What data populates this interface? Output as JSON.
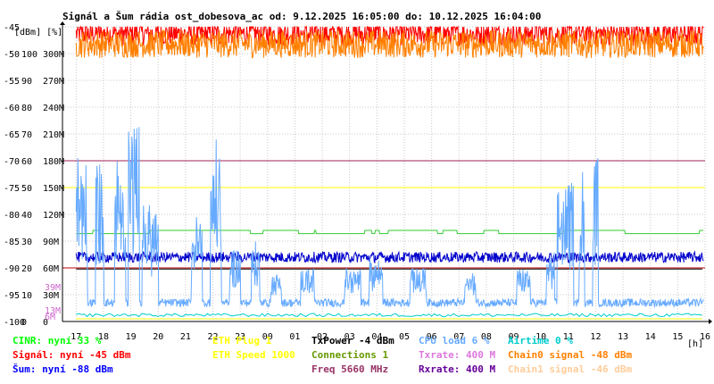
{
  "chart_data": {
    "type": "line",
    "title": "Signál a Šum rádia ost_dobesova_ac od: 9.12.2025 16:05:00 do: 10.12.2025 16:04:00",
    "y_units_label": "[dBm] [%]",
    "x_unit": "[h]",
    "x_tick_labels": [
      "17",
      "18",
      "19",
      "20",
      "21",
      "22",
      "23",
      "00",
      "01",
      "02",
      "03",
      "04",
      "05",
      "06",
      "07",
      "08",
      "09",
      "10",
      "11",
      "12",
      "13",
      "14",
      "15",
      "16"
    ],
    "x_range": [
      16.5,
      40.0
    ],
    "y_range_dbm": [
      -100,
      -45
    ],
    "y_tick_labels": [
      {
        "dbm": "-45",
        "pct": "",
        "rate": ""
      },
      {
        "dbm": "-50",
        "pct": "100",
        "rate": "300M"
      },
      {
        "dbm": "-55",
        "pct": "90",
        "rate": "270M"
      },
      {
        "dbm": "-60",
        "pct": "80",
        "rate": "240M"
      },
      {
        "dbm": "-65",
        "pct": "70",
        "rate": "210M"
      },
      {
        "dbm": "-70",
        "pct": "60",
        "rate": "180M"
      },
      {
        "dbm": "-75",
        "pct": "50",
        "rate": "150M"
      },
      {
        "dbm": "-80",
        "pct": "40",
        "rate": "120M"
      },
      {
        "dbm": "-85",
        "pct": "30",
        "rate": "90M"
      },
      {
        "dbm": "-90",
        "pct": "20",
        "rate": "60M"
      },
      {
        "dbm": "-95",
        "pct": "10",
        "rate": "30M"
      },
      {
        "dbm": "-100",
        "pct": "0",
        "rate": "0"
      }
    ],
    "side_labels": [
      {
        "text": "39M",
        "dbm": -93.5,
        "color": "#cc66cc"
      },
      {
        "text": "13M",
        "dbm": -97.8,
        "color": "#cc66cc"
      },
      {
        "text": "6M",
        "dbm": -99.0,
        "color": "#cc66cc"
      }
    ],
    "reference_lines": [
      {
        "dbm": -70,
        "color": "#a0205a"
      },
      {
        "dbm": -75,
        "color": "#ffff00"
      },
      {
        "dbm": -90,
        "color": "#c00000"
      }
    ],
    "series": [
      {
        "name": "Signál",
        "color": "#ff0000",
        "kind": "noisy",
        "base": -46.3,
        "spread": 2.2
      },
      {
        "name": "Chain0 signal",
        "color": "#ff8000",
        "kind": "noisy",
        "base": -48.2,
        "spread": 2.6
      },
      {
        "name": "Connections",
        "color": "#33cc33",
        "kind": "step",
        "base": -83.6,
        "alt": -83.0
      },
      {
        "name": "Šum",
        "color": "#0000cc",
        "kind": "noisy",
        "base": -88.0,
        "spread": 1.0
      },
      {
        "name": "TxPower",
        "color": "#000000",
        "kind": "flat",
        "base": -90.2
      },
      {
        "name": "CPU load",
        "color": "#66aaff",
        "kind": "bursty",
        "base": -96.5,
        "bursts": [
          [
            17.0,
            17.4,
            -68
          ],
          [
            17.7,
            18.0,
            -70
          ],
          [
            18.4,
            18.8,
            -68
          ],
          [
            18.9,
            19.3,
            -63
          ],
          [
            19.4,
            20.0,
            -78
          ],
          [
            21.2,
            21.6,
            -80
          ],
          [
            21.9,
            22.3,
            -66
          ],
          [
            22.6,
            23.0,
            -86
          ],
          [
            23.4,
            23.7,
            -85
          ],
          [
            24.1,
            24.5,
            -91
          ],
          [
            25.2,
            25.7,
            -90
          ],
          [
            26.8,
            27.4,
            -90
          ],
          [
            27.7,
            28.2,
            -88
          ],
          [
            29.2,
            29.8,
            -90
          ],
          [
            31.2,
            31.6,
            -91
          ],
          [
            33.1,
            33.6,
            -90
          ],
          [
            34.2,
            34.5,
            -87
          ],
          [
            34.6,
            35.2,
            -74
          ],
          [
            35.4,
            35.6,
            -69
          ],
          [
            35.9,
            36.1,
            -69
          ]
        ]
      },
      {
        "name": "Airtime",
        "color": "#00cccc",
        "kind": "flat_low",
        "base": -98.8
      },
      {
        "name": "ETH Speed",
        "color": "#ffff00",
        "kind": "flat",
        "base": -99.5
      }
    ]
  },
  "legend": [
    {
      "text": "CINR: nyní 33 %",
      "color": "#00ff00"
    },
    {
      "text": "Signál: nyní -45 dBm",
      "color": "#ff0000"
    },
    {
      "text": "Šum: nyní -88 dBm",
      "color": "#0000ff"
    },
    {
      "text": "ETH Plug 1",
      "color": "#ffff00"
    },
    {
      "text": "ETH Speed 1000",
      "color": "#ffff00"
    },
    {
      "text": "TxPower -4 dBm",
      "color": "#000000"
    },
    {
      "text": "Connections 1",
      "color": "#669900"
    },
    {
      "text": "Freq 5660 MHz",
      "color": "#993366"
    },
    {
      "text": "CPU load 6 %",
      "color": "#66aaff"
    },
    {
      "text": "Txrate: 400 M",
      "color": "#dd77dd"
    },
    {
      "text": "Rxrate: 400 M",
      "color": "#660099"
    },
    {
      "text": "Airtime 0 %",
      "color": "#00cccc"
    },
    {
      "text": "Chain0 signal -48 dBm",
      "color": "#ff8000"
    },
    {
      "text": "Chain1 signal -46 dBm",
      "color": "#ffcc99"
    }
  ]
}
